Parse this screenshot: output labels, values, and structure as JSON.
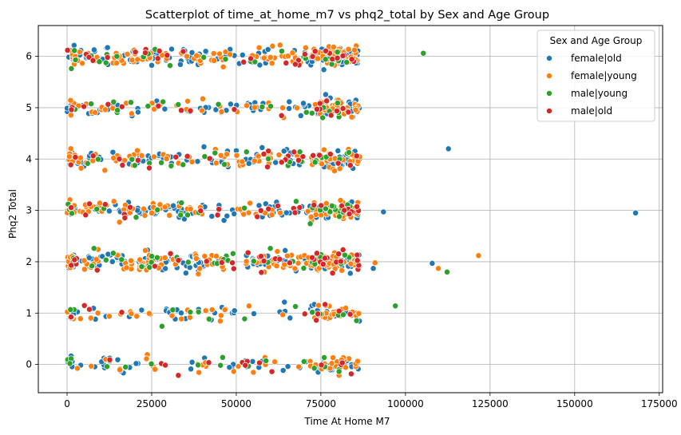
{
  "chart_data": {
    "type": "scatter",
    "title": "Scatterplot of time_at_home_m7 vs phq2_total by Sex and Age Group",
    "xlabel": "Time At Home M7",
    "ylabel": "Phq2 Total",
    "xlim": [
      -8500,
      176000
    ],
    "ylim": [
      -0.55,
      6.6
    ],
    "xticks": [
      0,
      25000,
      50000,
      75000,
      100000,
      125000,
      150000,
      175000
    ],
    "xtick_labels": [
      "0",
      "25000",
      "50000",
      "75000",
      "100000",
      "125000",
      "150000",
      "175000"
    ],
    "yticks": [
      0,
      1,
      2,
      3,
      4,
      5,
      6
    ],
    "ytick_labels": [
      "0",
      "1",
      "2",
      "3",
      "4",
      "5",
      "6"
    ],
    "grid": true,
    "legend": {
      "title": "Sex and Age Group",
      "placement": "top-right"
    },
    "series": [
      {
        "name": "female|old",
        "color": "#1f77b4",
        "cluster_x_range": [
          0,
          86500
        ],
        "cluster_y_levels": [
          0,
          1,
          2,
          3,
          4,
          5,
          6
        ],
        "cluster_counts": [
          55,
          45,
          140,
          110,
          110,
          80,
          130
        ],
        "points": [
          [
            93500,
            2.97
          ],
          [
            112700,
            4.2
          ],
          [
            107900,
            1.97
          ],
          [
            168000,
            2.95
          ],
          [
            90500,
            1.87
          ]
        ]
      },
      {
        "name": "female|young",
        "color": "#ff7f0e",
        "cluster_x_range": [
          0,
          86500
        ],
        "cluster_y_levels": [
          0,
          1,
          2,
          3,
          4,
          5,
          6
        ],
        "cluster_counts": [
          45,
          55,
          150,
          90,
          90,
          70,
          130
        ],
        "points": [
          [
            121600,
            2.12
          ],
          [
            109700,
            1.87
          ],
          [
            91000,
            1.98
          ]
        ]
      },
      {
        "name": "male|young",
        "color": "#2ca02c",
        "cluster_x_range": [
          0,
          86500
        ],
        "cluster_y_levels": [
          0,
          1,
          2,
          3,
          4,
          5,
          6
        ],
        "cluster_counts": [
          18,
          14,
          40,
          30,
          25,
          20,
          30
        ],
        "points": [
          [
            105300,
            6.06
          ],
          [
            112300,
            1.8
          ],
          [
            97000,
            1.14
          ]
        ]
      },
      {
        "name": "male|old",
        "color": "#d62728",
        "cluster_x_range": [
          0,
          86500
        ],
        "cluster_y_levels": [
          0,
          1,
          2,
          3,
          4,
          5,
          6
        ],
        "cluster_counts": [
          14,
          10,
          38,
          28,
          25,
          18,
          30
        ],
        "points": []
      }
    ]
  }
}
